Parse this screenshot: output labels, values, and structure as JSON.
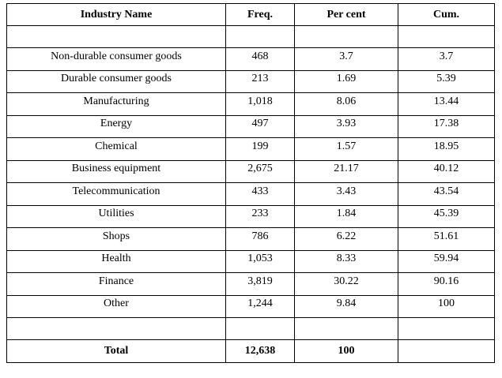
{
  "table": {
    "headers": [
      "Industry Name",
      "Freq.",
      "Per cent",
      "Cum."
    ],
    "rows": [
      [
        "Non-durable consumer goods",
        "468",
        "3.7",
        "3.7"
      ],
      [
        "Durable consumer goods",
        "213",
        "1.69",
        "5.39"
      ],
      [
        "Manufacturing",
        "1,018",
        "8.06",
        "13.44"
      ],
      [
        "Energy",
        "497",
        "3.93",
        "17.38"
      ],
      [
        "Chemical",
        "199",
        "1.57",
        "18.95"
      ],
      [
        "Business equipment",
        "2,675",
        "21.17",
        "40.12"
      ],
      [
        "Telecommunication",
        "433",
        "3.43",
        "43.54"
      ],
      [
        "Utilities",
        "233",
        "1.84",
        "45.39"
      ],
      [
        "Shops",
        "786",
        "6.22",
        "51.61"
      ],
      [
        "Health",
        "1,053",
        "8.33",
        "59.94"
      ],
      [
        "Finance",
        "3,819",
        "30.22",
        "90.16"
      ],
      [
        "Other",
        "1,244",
        "9.84",
        "100"
      ]
    ],
    "total": [
      "Total",
      "12,638",
      "100",
      ""
    ]
  }
}
